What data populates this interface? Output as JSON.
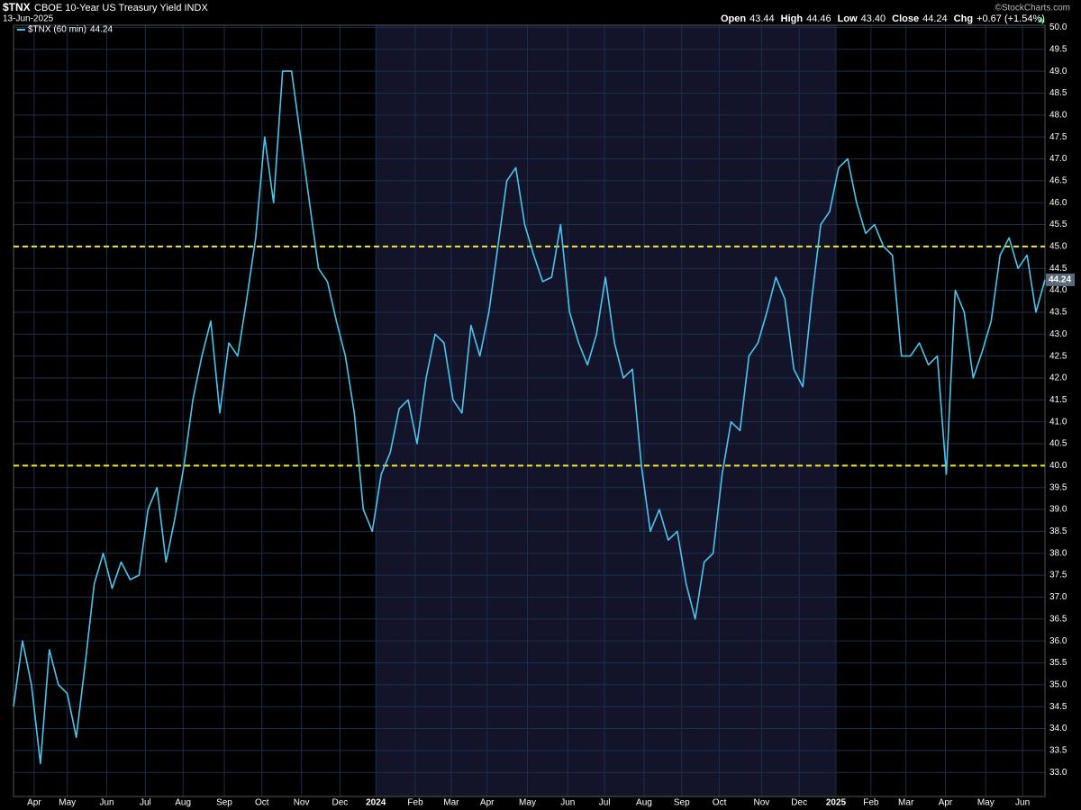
{
  "chart_data": {
    "type": "line",
    "title": "$TNX",
    "subtitle": "CBOE 10-Year US Treasury Yield INDX",
    "date": "13-Jun-2025",
    "credit": "©StockCharts.com",
    "stats": [
      {
        "label": "Open",
        "value": 43.44
      },
      {
        "label": "High",
        "value": 44.46
      },
      {
        "label": "Low",
        "value": 43.4,
        "value_label": "43.40"
      },
      {
        "label": "Close",
        "value": 44.24
      },
      {
        "label": "Chg",
        "value_label": "+0.67 (+1.54%)"
      }
    ],
    "series": [
      {
        "name": "$TNX (60 min)",
        "color": "#4cc4ec",
        "values": [
          34.5,
          36.0,
          35.0,
          33.2,
          35.8,
          35.0,
          34.8,
          33.8,
          35.5,
          37.3,
          38.0,
          37.2,
          37.8,
          37.4,
          37.5,
          39.0,
          39.5,
          37.8,
          38.8,
          40.0,
          41.5,
          42.5,
          43.3,
          41.2,
          42.8,
          42.5,
          43.8,
          45.2,
          47.5,
          46.0,
          49.0,
          49.0,
          47.5,
          46.0,
          44.5,
          44.2,
          43.3,
          42.5,
          41.2,
          39.0,
          38.5,
          39.8,
          40.3,
          41.3,
          41.5,
          40.5,
          42.0,
          43.0,
          42.8,
          41.5,
          41.2,
          43.2,
          42.5,
          43.5,
          45.0,
          46.5,
          46.8,
          45.5,
          44.8,
          44.2,
          44.3,
          45.5,
          43.5,
          42.8,
          42.3,
          43.0,
          44.3,
          42.8,
          42.0,
          42.2,
          40.0,
          38.5,
          39.0,
          38.3,
          38.5,
          37.3,
          36.5,
          37.8,
          38.0,
          39.8,
          41.0,
          40.8,
          42.5,
          42.8,
          43.5,
          44.3,
          43.8,
          42.2,
          41.8,
          43.8,
          45.5,
          45.8,
          46.8,
          47.0,
          46.0,
          45.3,
          45.5,
          45.0,
          44.8,
          42.5,
          42.5,
          42.8,
          42.3,
          42.5,
          39.8,
          44.0,
          43.5,
          42.0,
          42.6,
          43.3,
          44.8,
          45.2,
          44.5,
          44.8,
          43.5,
          44.24
        ]
      }
    ],
    "xlim": [
      0,
      115
    ],
    "xticks": [
      {
        "value": 2.3,
        "label": "Apr"
      },
      {
        "value": 6.0,
        "label": "May"
      },
      {
        "value": 10.4,
        "label": "Jun"
      },
      {
        "value": 14.7,
        "label": "Jul"
      },
      {
        "value": 18.9,
        "label": "Aug"
      },
      {
        "value": 23.5,
        "label": "Sep"
      },
      {
        "value": 27.7,
        "label": "Oct"
      },
      {
        "value": 32.1,
        "label": "Nov"
      },
      {
        "value": 36.4,
        "label": "Dec"
      },
      {
        "value": 40.4,
        "label": "2024"
      },
      {
        "value": 44.8,
        "label": "Feb"
      },
      {
        "value": 48.8,
        "label": "Mar"
      },
      {
        "value": 52.8,
        "label": "Apr"
      },
      {
        "value": 57.3,
        "label": "May"
      },
      {
        "value": 61.8,
        "label": "Jun"
      },
      {
        "value": 65.9,
        "label": "Jul"
      },
      {
        "value": 70.3,
        "label": "Aug"
      },
      {
        "value": 74.5,
        "label": "Sep"
      },
      {
        "value": 78.7,
        "label": "Oct"
      },
      {
        "value": 83.4,
        "label": "Nov"
      },
      {
        "value": 87.6,
        "label": "Dec"
      },
      {
        "value": 91.7,
        "label": "2025"
      },
      {
        "value": 95.6,
        "label": "Feb"
      },
      {
        "value": 99.5,
        "label": "Mar"
      },
      {
        "value": 103.9,
        "label": "Apr"
      },
      {
        "value": 108.4,
        "label": "May"
      },
      {
        "value": 112.5,
        "label": "Jun"
      }
    ],
    "ylim": [
      32.45,
      50.05
    ],
    "yticks": [
      {
        "value": 33,
        "label": "33.0"
      },
      33.5,
      {
        "value": 34,
        "label": "34.0"
      },
      34.5,
      {
        "value": 35,
        "label": "35.0"
      },
      35.5,
      {
        "value": 36,
        "label": "36.0"
      },
      36.5,
      {
        "value": 37,
        "label": "37.0"
      },
      37.5,
      {
        "value": 38,
        "label": "38.0"
      },
      38.5,
      {
        "value": 39,
        "label": "39.0"
      },
      39.5,
      {
        "value": 40,
        "label": "40.0"
      },
      40.5,
      {
        "value": 41,
        "label": "41.0"
      },
      41.5,
      {
        "value": 42,
        "label": "42.0"
      },
      42.5,
      {
        "value": 43,
        "label": "43.0"
      },
      43.5,
      {
        "value": 44,
        "label": "44.0"
      },
      44.5,
      {
        "value": 45,
        "label": "45.0"
      },
      45.5,
      {
        "value": 46,
        "label": "46.0"
      },
      46.5,
      {
        "value": 47,
        "label": "47.0"
      },
      47.5,
      {
        "value": 48,
        "label": "48.0"
      },
      48.5,
      {
        "value": 49,
        "label": "49.0"
      },
      49.5,
      {
        "value": 50,
        "label": "50.0"
      }
    ],
    "hlines": [
      45,
      40
    ],
    "hline_color": "#f2e82a",
    "grid": true
  }
}
